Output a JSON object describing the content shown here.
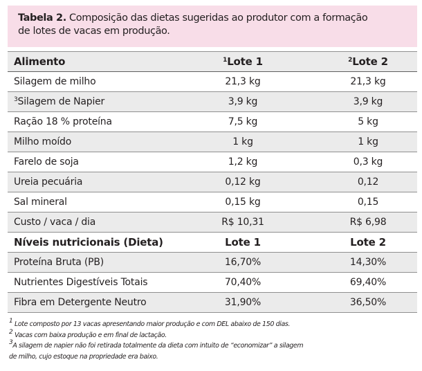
{
  "caption": {
    "label": "Tabela 2.",
    "line1": "Composição das dietas sugeridas ao produtor com a formação",
    "line2": "de lotes de vacas em produção."
  },
  "header": {
    "col1": "Alimento",
    "col2_mark": "1",
    "col2": "Lote 1",
    "col3_mark": "2",
    "col3": "Lote 2"
  },
  "rows": [
    {
      "name": "Silagem de milho",
      "l1": "21,3 kg",
      "l2": "21,3 kg"
    },
    {
      "mark": "3",
      "name": "Silagem de Napier",
      "l1": "3,9 kg",
      "l2": "3,9 kg"
    },
    {
      "name": "Ração 18 % proteína",
      "l1": "7,5 kg",
      "l2": "5 kg"
    },
    {
      "name": "Milho moído",
      "l1": "1 kg",
      "l2": "1 kg"
    },
    {
      "name": "Farelo de soja",
      "l1": "1,2 kg",
      "l2": "0,3 kg"
    },
    {
      "name": "Ureia pecuária",
      "l1": "0,12 kg",
      "l2": "0,12"
    },
    {
      "name": "Sal mineral",
      "l1": "0,15 kg",
      "l2": "0,15"
    },
    {
      "name": "Custo / vaca / dia",
      "l1": "R$ 10,31",
      "l2": "R$ 6,98"
    }
  ],
  "subheader": {
    "col1": "Níveis nutricionais (Dieta)",
    "col2": "Lote 1",
    "col3": "Lote 2"
  },
  "nutrition_rows": [
    {
      "name": "Proteína Bruta (PB)",
      "l1": "16,70%",
      "l2": "14,30%"
    },
    {
      "name": "Nutrientes Digestíveis Totais",
      "l1": "70,40%",
      "l2": "69,40%"
    },
    {
      "name": "Fibra em Detergente Neutro",
      "l1": "31,90%",
      "l2": "36,50%"
    }
  ],
  "footnotes": [
    {
      "mark": "1",
      "text": " Lote composto por 13 vacas apresentando maior produção e com DEL abaixo de 150 dias."
    },
    {
      "mark": "2",
      "text": " Vacas com baixa produção e em final de lactação."
    },
    {
      "mark": "3",
      "text": "A silagem de napier não foi retirada totalmente da dieta com intuito de “economizar” a silagem"
    },
    {
      "mark": "",
      "text": "de milho, cujo estoque na propriedade era baixo."
    }
  ]
}
